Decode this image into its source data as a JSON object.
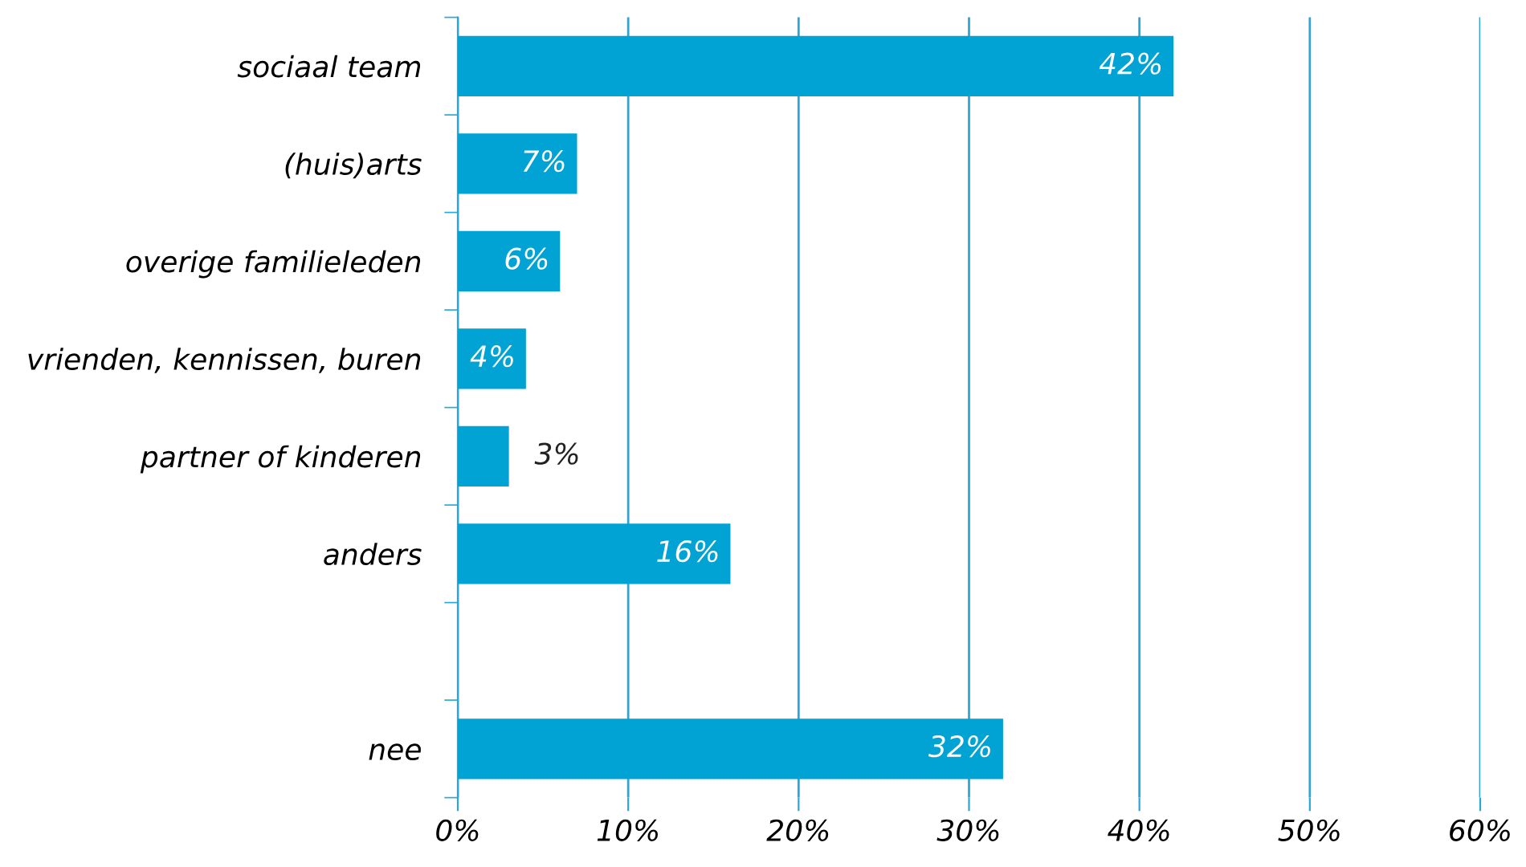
{
  "chart_data": {
    "type": "bar",
    "orientation": "horizontal",
    "categories": [
      "sociaal team",
      "(huis)arts",
      "overige familieleden",
      "vrienden, kennissen, buren",
      "partner of kinderen",
      "anders",
      null,
      "nee"
    ],
    "values": [
      42,
      7,
      6,
      4,
      3,
      16,
      null,
      32
    ],
    "value_labels": [
      "42%",
      "7%",
      "6%",
      "4%",
      "3%",
      "16%",
      null,
      "32%"
    ],
    "color": "#00a3d3",
    "xlim": [
      0,
      60
    ],
    "xticks": [
      {
        "value": 0,
        "label": "0%"
      },
      {
        "value": 10,
        "label": "10%"
      },
      {
        "value": 20,
        "label": "20%"
      },
      {
        "value": 30,
        "label": "30%"
      },
      {
        "value": 40,
        "label": "40%"
      },
      {
        "value": 50,
        "label": "50%"
      },
      {
        "value": 60,
        "label": "60%"
      }
    ],
    "grid": "x"
  }
}
